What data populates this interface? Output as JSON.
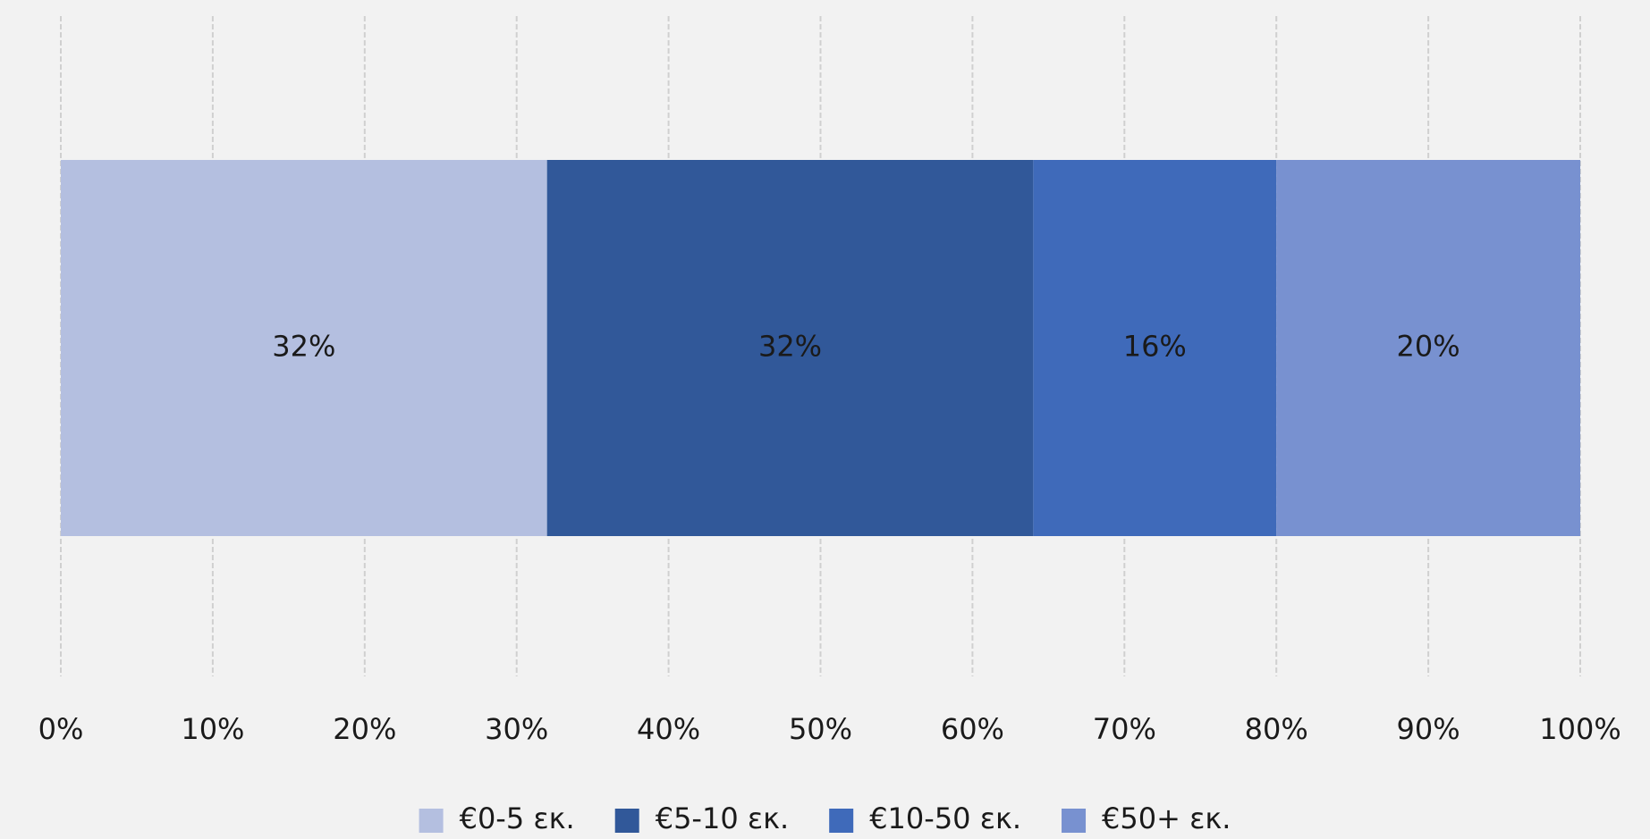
{
  "chart_data": {
    "type": "stacked_bar_horizontal",
    "categories": [
      null
    ],
    "series": [
      {
        "name": "€0-5 εκ.",
        "color": "#b4bfe0",
        "values": [
          32
        ],
        "value_labels": [
          "32%"
        ]
      },
      {
        "name": "€5-10 εκ.",
        "color": "#315899",
        "values": [
          32
        ],
        "value_labels": [
          "32%"
        ]
      },
      {
        "name": "€10-50 εκ.",
        "color": "#3f6aba",
        "values": [
          16
        ],
        "value_labels": [
          "16%"
        ]
      },
      {
        "name": "€50+ εκ.",
        "color": "#7891d0",
        "values": [
          20
        ],
        "value_labels": [
          "20%"
        ]
      }
    ],
    "xlim": [
      0,
      100
    ],
    "xticks": [
      {
        "value": 0,
        "label": "0%"
      },
      {
        "value": 10,
        "label": "10%"
      },
      {
        "value": 20,
        "label": "20%"
      },
      {
        "value": 30,
        "label": "30%"
      },
      {
        "value": 40,
        "label": "40%"
      },
      {
        "value": 50,
        "label": "50%"
      },
      {
        "value": 60,
        "label": "60%"
      },
      {
        "value": 70,
        "label": "70%"
      },
      {
        "value": 80,
        "label": "80%"
      },
      {
        "value": 90,
        "label": "90%"
      },
      {
        "value": 100,
        "label": "100%"
      }
    ],
    "grid": true,
    "legend": "bottom"
  }
}
